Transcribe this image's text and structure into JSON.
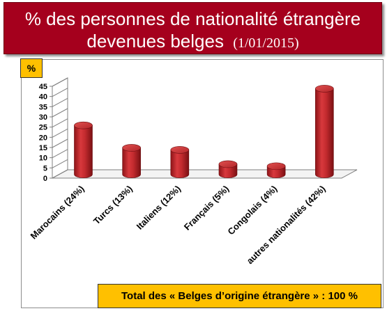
{
  "title": {
    "line1": "% des personnes de nationalité étrangère",
    "line2": "devenues belges",
    "date": "(1/01/2015)"
  },
  "unit_label": "%",
  "total_label": "Total des « Belges d’origine étrangère » : 100 %",
  "colors": {
    "title_bg": "#a5001d",
    "bar": "#c0282d",
    "badge": "#ffc000"
  },
  "chart_data": {
    "type": "bar",
    "style": "3d-cylinder",
    "categories": [
      "Marocains (24%)",
      "Turcs (13%)",
      "Italiens (12%)",
      "Français (5%)",
      "Congolais (4%)",
      "autres nationalités (42%)"
    ],
    "values": [
      24,
      13,
      12,
      5,
      4,
      42
    ],
    "yticks": [
      0,
      5,
      10,
      15,
      20,
      25,
      30,
      35,
      40,
      45
    ],
    "ylim": [
      0,
      45
    ],
    "grid": false,
    "legend": "none"
  }
}
